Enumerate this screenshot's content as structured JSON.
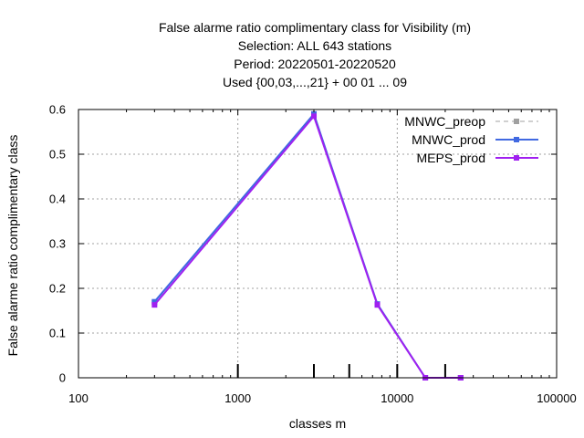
{
  "chart_data": {
    "type": "line",
    "title_lines": [
      "False alarme ratio complimentary class  for Visibility (m)",
      "Selection: ALL    643 stations",
      "Period: 20220501-20220520",
      "Used {00,03,...,21} + 00 01 ... 09"
    ],
    "xlabel": "classes m",
    "ylabel": "False alarme ratio complimentary class",
    "x_scale": "log",
    "xlim": [
      100,
      100000
    ],
    "ylim": [
      0,
      0.6
    ],
    "x_ticks": [
      100,
      1000,
      10000,
      100000
    ],
    "x_tick_labels": [
      "100",
      "1000",
      "10000",
      "100000"
    ],
    "y_ticks": [
      0,
      0.1,
      0.2,
      0.3,
      0.4,
      0.5,
      0.6
    ],
    "y_tick_labels": [
      "0",
      "0.1",
      "0.2",
      "0.3",
      "0.4",
      "0.5",
      "0.6"
    ],
    "grid": true,
    "legend_position": "top-right",
    "threshold_markers": [
      1000,
      3000,
      5000,
      10000,
      20000
    ],
    "series": [
      {
        "name": "MNWC_preop",
        "color": "#a0a0a0",
        "dash": true,
        "x": [
          300,
          3000,
          7500,
          15000,
          25000
        ],
        "y": [
          0.168,
          0.59,
          0.163,
          0.0,
          0.0
        ]
      },
      {
        "name": "MNWC_prod",
        "color": "#4169e1",
        "dash": false,
        "x": [
          300,
          3000,
          7500,
          15000,
          25000
        ],
        "y": [
          0.17,
          0.59,
          0.165,
          0.0,
          0.0
        ]
      },
      {
        "name": "MEPS_prod",
        "color": "#a020f0",
        "dash": false,
        "x": [
          300,
          3000,
          7500,
          15000,
          25000
        ],
        "y": [
          0.163,
          0.585,
          0.163,
          0.0,
          0.0
        ]
      }
    ]
  }
}
